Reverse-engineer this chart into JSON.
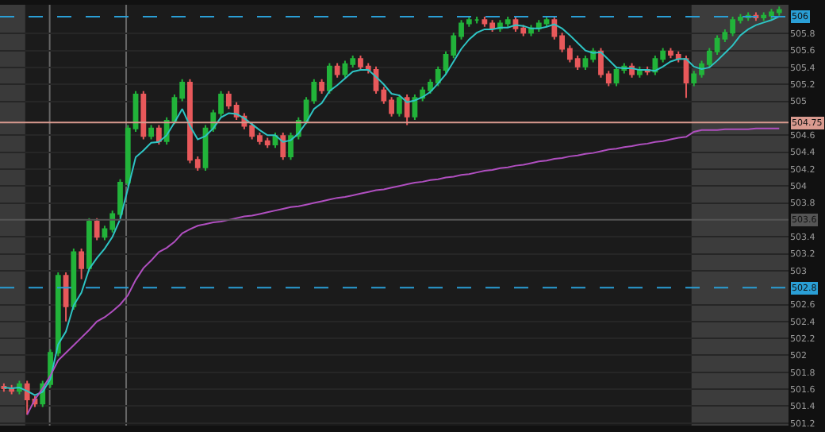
{
  "chart_data": {
    "type": "candlestick",
    "categories": [
      null,
      null,
      null,
      null,
      null,
      null,
      null,
      null,
      null,
      null,
      null,
      null,
      null,
      null,
      null,
      null,
      null,
      null,
      null,
      null,
      null,
      null,
      null,
      null,
      null,
      null,
      null,
      null,
      null,
      null,
      null,
      null,
      null,
      null,
      null,
      null,
      null,
      null,
      null,
      null,
      null,
      null,
      null,
      null,
      null,
      null,
      null,
      null,
      null,
      null,
      null,
      null,
      null,
      null,
      null,
      null,
      null,
      null,
      null,
      null,
      null,
      null,
      null,
      null,
      null,
      null,
      null,
      null,
      null,
      null,
      null,
      null,
      null,
      null,
      null,
      null,
      null,
      null,
      null,
      null,
      null,
      null,
      null,
      null,
      null,
      null,
      null,
      null,
      null,
      null,
      null,
      null,
      null,
      null,
      null,
      null,
      null,
      null,
      null,
      null,
      null
    ],
    "ohlc": [
      [
        501.63,
        501.67,
        501.57,
        501.61
      ],
      [
        501.61,
        501.65,
        501.54,
        501.58
      ],
      [
        501.58,
        501.7,
        501.54,
        501.66
      ],
      [
        501.66,
        501.7,
        501.3,
        501.48
      ],
      [
        501.48,
        501.52,
        501.39,
        501.43
      ],
      [
        501.43,
        501.7,
        501.39,
        501.66
      ],
      [
        501.66,
        502.07,
        501.62,
        502.03
      ],
      [
        502.03,
        502.98,
        501.99,
        502.94
      ],
      [
        502.94,
        502.98,
        502.4,
        502.58
      ],
      [
        502.58,
        503.26,
        502.54,
        503.22
      ],
      [
        503.22,
        503.26,
        502.9,
        503.03
      ],
      [
        503.03,
        503.62,
        502.99,
        503.58
      ],
      [
        503.58,
        503.62,
        503.36,
        503.4
      ],
      [
        503.4,
        503.53,
        503.36,
        503.49
      ],
      [
        503.49,
        503.71,
        503.45,
        503.67
      ],
      [
        503.67,
        504.08,
        503.63,
        504.04
      ],
      [
        504.04,
        504.72,
        504.0,
        504.68
      ],
      [
        504.68,
        505.12,
        504.64,
        505.08
      ],
      [
        505.08,
        505.12,
        504.55,
        504.59
      ],
      [
        504.59,
        504.72,
        504.55,
        504.68
      ],
      [
        504.68,
        504.72,
        504.49,
        504.53
      ],
      [
        504.53,
        504.81,
        504.49,
        504.77
      ],
      [
        504.77,
        505.08,
        504.73,
        505.04
      ],
      [
        505.04,
        505.26,
        505.0,
        505.22
      ],
      [
        505.22,
        505.26,
        504.27,
        504.31
      ],
      [
        504.31,
        504.35,
        504.18,
        504.22
      ],
      [
        504.22,
        504.72,
        504.18,
        504.68
      ],
      [
        504.68,
        504.9,
        504.64,
        504.86
      ],
      [
        504.86,
        505.12,
        504.82,
        505.08
      ],
      [
        505.08,
        505.12,
        504.91,
        504.95
      ],
      [
        504.95,
        504.99,
        504.78,
        504.82
      ],
      [
        504.82,
        504.86,
        504.67,
        504.71
      ],
      [
        504.71,
        504.75,
        504.55,
        504.59
      ],
      [
        504.59,
        504.63,
        504.49,
        504.53
      ],
      [
        504.53,
        504.57,
        504.45,
        504.49
      ],
      [
        504.49,
        504.63,
        504.45,
        504.59
      ],
      [
        504.59,
        504.63,
        504.31,
        504.35
      ],
      [
        504.35,
        504.63,
        504.31,
        504.59
      ],
      [
        504.59,
        504.81,
        504.55,
        504.77
      ],
      [
        504.77,
        505.05,
        504.73,
        505.01
      ],
      [
        505.01,
        505.26,
        504.97,
        505.22
      ],
      [
        505.22,
        505.26,
        505.09,
        505.13
      ],
      [
        505.13,
        505.45,
        505.09,
        505.41
      ],
      [
        505.41,
        505.45,
        505.28,
        505.32
      ],
      [
        505.32,
        505.48,
        505.28,
        505.44
      ],
      [
        505.44,
        505.54,
        505.4,
        505.5
      ],
      [
        505.5,
        505.54,
        505.37,
        505.41
      ],
      [
        505.41,
        505.45,
        505.33,
        505.37
      ],
      [
        505.37,
        505.41,
        505.09,
        505.13
      ],
      [
        505.13,
        505.17,
        504.97,
        505.01
      ],
      [
        505.01,
        505.05,
        504.82,
        504.86
      ],
      [
        504.86,
        505.08,
        504.82,
        505.04
      ],
      [
        505.04,
        505.08,
        504.72,
        504.82
      ],
      [
        504.82,
        505.08,
        504.78,
        505.04
      ],
      [
        505.04,
        505.17,
        505.0,
        505.13
      ],
      [
        505.13,
        505.26,
        505.09,
        505.22
      ],
      [
        505.22,
        505.41,
        505.18,
        505.37
      ],
      [
        505.37,
        505.59,
        505.33,
        505.55
      ],
      [
        505.55,
        505.81,
        505.51,
        505.77
      ],
      [
        505.77,
        505.96,
        505.73,
        505.92
      ],
      [
        505.92,
        506.0,
        505.88,
        505.96
      ],
      [
        505.96,
        506.0,
        505.92,
        505.96
      ],
      [
        505.96,
        506.0,
        505.88,
        505.92
      ],
      [
        505.92,
        505.96,
        505.82,
        505.86
      ],
      [
        505.86,
        505.96,
        505.82,
        505.92
      ],
      [
        505.92,
        506.0,
        505.88,
        505.96
      ],
      [
        505.96,
        506.0,
        505.82,
        505.86
      ],
      [
        505.86,
        505.9,
        505.77,
        505.81
      ],
      [
        505.81,
        505.9,
        505.77,
        505.86
      ],
      [
        505.86,
        505.96,
        505.82,
        505.92
      ],
      [
        505.92,
        506.0,
        505.88,
        505.96
      ],
      [
        505.96,
        506.0,
        505.73,
        505.77
      ],
      [
        505.77,
        505.81,
        505.58,
        505.62
      ],
      [
        505.62,
        505.66,
        505.46,
        505.5
      ],
      [
        505.5,
        505.54,
        505.37,
        505.41
      ],
      [
        505.41,
        505.54,
        505.37,
        505.5
      ],
      [
        505.5,
        505.63,
        505.46,
        505.59
      ],
      [
        505.59,
        505.63,
        505.28,
        505.32
      ],
      [
        505.32,
        505.36,
        505.18,
        505.22
      ],
      [
        505.22,
        505.41,
        505.18,
        505.37
      ],
      [
        505.37,
        505.45,
        505.33,
        505.41
      ],
      [
        505.41,
        505.45,
        505.28,
        505.32
      ],
      [
        505.32,
        505.41,
        505.28,
        505.37
      ],
      [
        505.37,
        505.41,
        505.31,
        505.35
      ],
      [
        505.35,
        505.54,
        505.31,
        505.5
      ],
      [
        505.5,
        505.63,
        505.46,
        505.59
      ],
      [
        505.59,
        505.63,
        505.51,
        505.55
      ],
      [
        505.55,
        505.59,
        505.46,
        505.5
      ],
      [
        505.5,
        505.54,
        505.04,
        505.22
      ],
      [
        505.22,
        505.36,
        505.18,
        505.32
      ],
      [
        505.32,
        505.48,
        505.28,
        505.44
      ],
      [
        505.44,
        505.63,
        505.4,
        505.59
      ],
      [
        505.59,
        505.78,
        505.55,
        505.74
      ],
      [
        505.74,
        505.85,
        505.7,
        505.81
      ],
      [
        505.81,
        506.0,
        505.77,
        505.96
      ],
      [
        505.96,
        506.03,
        505.92,
        505.99
      ],
      [
        505.99,
        506.05,
        505.95,
        506.01
      ],
      [
        506.01,
        506.05,
        505.95,
        505.99
      ],
      [
        505.99,
        506.05,
        505.95,
        506.01
      ],
      [
        506.01,
        506.09,
        505.97,
        506.05
      ],
      [
        506.05,
        506.12,
        506.01,
        506.08
      ]
    ],
    "series": [
      {
        "type": "line",
        "color": "#2ec4c4",
        "values": [
          501.62,
          501.61,
          501.62,
          501.58,
          501.53,
          501.57,
          501.72,
          502.13,
          502.28,
          502.59,
          502.74,
          503.02,
          503.15,
          503.26,
          503.4,
          503.61,
          503.97,
          504.34,
          504.42,
          504.51,
          504.52,
          504.6,
          504.75,
          504.91,
          504.71,
          504.55,
          504.59,
          504.68,
          504.81,
          504.86,
          504.85,
          504.8,
          504.73,
          504.66,
          504.6,
          504.6,
          504.52,
          504.54,
          504.62,
          504.75,
          504.91,
          504.98,
          505.12,
          505.19,
          505.27,
          505.35,
          505.37,
          505.37,
          505.29,
          505.2,
          505.09,
          505.07,
          504.99,
          505.01,
          505.05,
          505.11,
          505.21,
          505.32,
          505.47,
          505.62,
          505.73,
          505.81,
          505.85,
          505.85,
          505.87,
          505.87,
          505.9,
          505.89,
          505.86,
          505.86,
          505.88,
          505.91,
          505.86,
          505.78,
          505.69,
          505.6,
          505.57,
          505.58,
          505.49,
          505.4,
          505.39,
          505.39,
          505.37,
          505.37,
          505.36,
          505.41,
          505.47,
          505.5,
          505.5,
          505.41,
          505.38,
          505.4,
          505.48,
          505.57,
          505.66,
          505.78,
          505.85,
          505.9,
          505.93,
          505.96,
          506.0
        ]
      },
      {
        "type": "line",
        "color": "#b04fc0",
        "values": [
          null,
          null,
          null,
          501.3,
          501.48,
          501.61,
          501.76,
          501.94,
          502.03,
          502.12,
          502.21,
          502.3,
          502.4,
          502.45,
          502.52,
          502.6,
          502.71,
          502.89,
          503.03,
          503.12,
          503.22,
          503.27,
          503.34,
          503.44,
          503.49,
          503.53,
          503.55,
          503.57,
          503.58,
          503.6,
          503.62,
          503.64,
          503.65,
          503.67,
          503.69,
          503.71,
          503.73,
          503.75,
          503.76,
          503.78,
          503.8,
          503.82,
          503.84,
          503.86,
          503.87,
          503.89,
          503.91,
          503.93,
          503.95,
          503.96,
          503.98,
          504.0,
          504.02,
          504.04,
          504.05,
          504.07,
          504.08,
          504.1,
          504.11,
          504.13,
          504.14,
          504.16,
          504.18,
          504.19,
          504.21,
          504.22,
          504.24,
          504.25,
          504.27,
          504.29,
          504.3,
          504.32,
          504.33,
          504.35,
          504.36,
          504.38,
          504.39,
          504.41,
          504.43,
          504.44,
          504.46,
          504.47,
          504.49,
          504.5,
          504.52,
          504.53,
          504.55,
          504.57,
          504.58,
          504.64,
          504.66,
          504.66,
          504.66,
          504.67,
          504.67,
          504.67,
          504.67,
          504.68,
          504.68,
          504.68,
          504.68
        ]
      }
    ],
    "ylim": [
      501.17,
      506.14
    ],
    "yticks": [
      501.2,
      501.4,
      501.6,
      501.8,
      502,
      502.2,
      502.4,
      502.6,
      503,
      503.2,
      503.4,
      503.8,
      504,
      504.2,
      504.4,
      504.6,
      505,
      505.2,
      505.4,
      505.6,
      505.8
    ],
    "ref_lines": [
      {
        "axis": "y",
        "value": 506,
        "label": "506",
        "color": "#2a9fd6",
        "line_style": "dashed"
      },
      {
        "axis": "y",
        "value": 504.75,
        "label": "504.75",
        "color": "#d99a8f",
        "line_style": "solid"
      },
      {
        "axis": "y",
        "value": 503.6,
        "label": "503.6",
        "color": "#555555",
        "line_style": "solid"
      },
      {
        "axis": "y",
        "value": 502.8,
        "label": "502.8",
        "color": "#2a9fd6",
        "line_style": "dashed"
      }
    ],
    "grid": "y"
  }
}
